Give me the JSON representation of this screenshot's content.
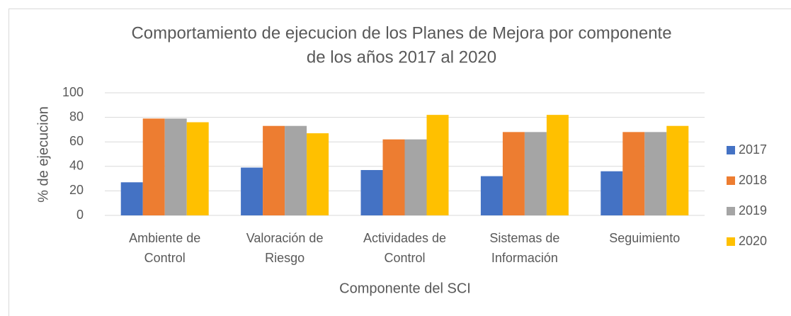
{
  "chart_data": {
    "type": "bar",
    "title": [
      "Comportamiento de  ejecucion de los Planes de Mejora por componente",
      "de los años 2017 al 2020"
    ],
    "categories": [
      [
        "Ambiente de",
        "Control"
      ],
      [
        "Valoración de",
        "Riesgo"
      ],
      [
        "Actividades de",
        "Control"
      ],
      [
        "Sistemas de",
        "Información"
      ],
      [
        "Seguimiento"
      ]
    ],
    "series": [
      {
        "name": "2017",
        "color": "#4472c4",
        "values": [
          27,
          39,
          37,
          32,
          36
        ]
      },
      {
        "name": "2018",
        "color": "#ed7d31",
        "values": [
          79,
          73,
          62,
          68,
          68
        ]
      },
      {
        "name": "2019",
        "color": "#a5a5a5",
        "values": [
          79,
          73,
          62,
          68,
          68
        ]
      },
      {
        "name": "2020",
        "color": "#ffc000",
        "values": [
          76,
          67,
          82,
          82,
          73
        ]
      }
    ],
    "ylim": [
      0,
      100
    ],
    "yticks": [
      0,
      20,
      40,
      60,
      80,
      100
    ],
    "grid": true,
    "xlabel": "Componente del SCI",
    "ylabel": "% de ejecucion",
    "legend": "right"
  }
}
